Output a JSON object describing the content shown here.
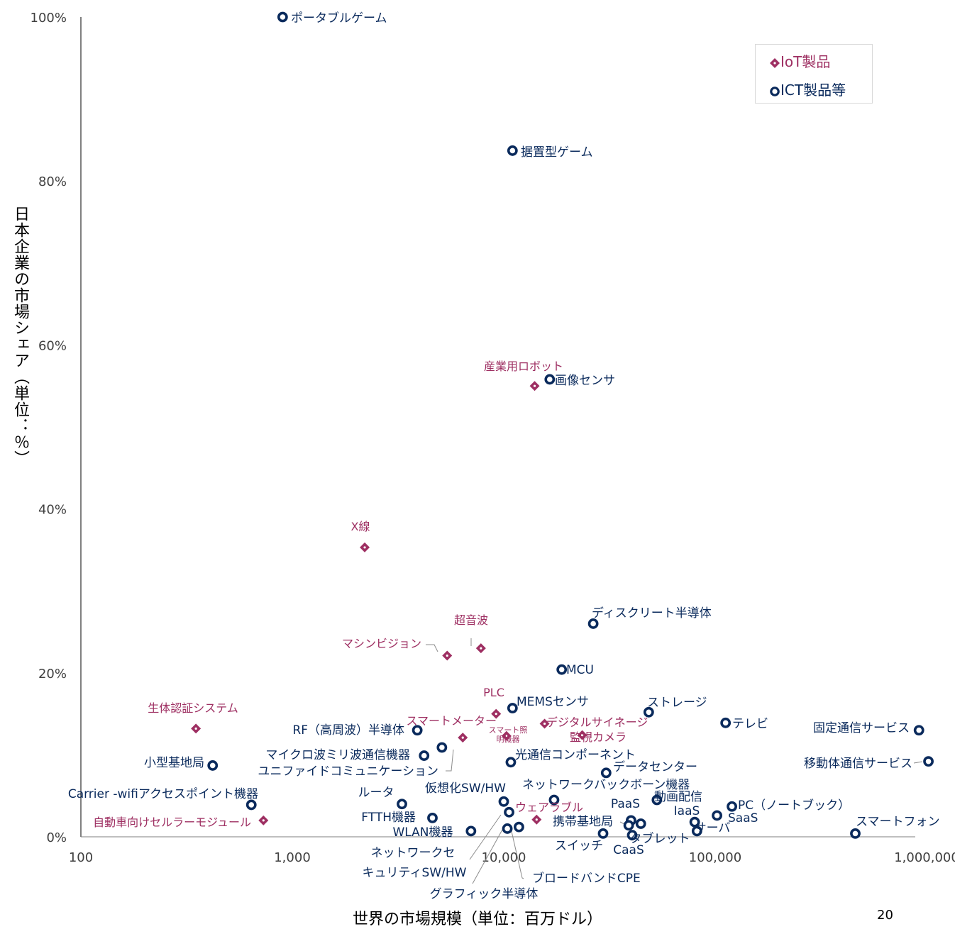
{
  "chart_data": {
    "type": "scatter",
    "xlabel": "世界の市場規模（単位：百万ドル）",
    "ylabel": "日本企業の市場シェア（単位：％）",
    "xscale": "log",
    "xlim": [
      100,
      1000000
    ],
    "ylim": [
      0,
      100
    ],
    "x_ticks": [
      "100",
      "1,000",
      "10,000",
      "100,000",
      "1,000,000"
    ],
    "y_ticks": [
      "0%",
      "20%",
      "40%",
      "60%",
      "80%",
      "100%"
    ],
    "legend_position": "top-right",
    "series": [
      {
        "name": "IoT製品",
        "marker": "diamond",
        "color": "#9e2f62",
        "points": [
          {
            "label": "産業用ロボット",
            "x": 14000,
            "y": 55.0
          },
          {
            "label": "X線",
            "x": 2200,
            "y": 35.3
          },
          {
            "label": "超音波",
            "x": 7800,
            "y": 23.0
          },
          {
            "label": "マシンビジョン",
            "x": 5400,
            "y": 22.1
          },
          {
            "label": "PLC",
            "x": 9200,
            "y": 15.0
          },
          {
            "label": "生体認証システム",
            "x": 350,
            "y": 13.2
          },
          {
            "label": "スマートメーター",
            "x": 6400,
            "y": 12.1
          },
          {
            "label": "スマート照明機器",
            "x": 10300,
            "y": 12.3
          },
          {
            "label": "デジタルサイネージ",
            "x": 15600,
            "y": 13.8
          },
          {
            "label": "監視カメラ",
            "x": 23500,
            "y": 12.4
          },
          {
            "label": "ウェアラブル",
            "x": 14300,
            "y": 2.1
          },
          {
            "label": "自動車向けセルラーモジュール",
            "x": 730,
            "y": 2.0
          }
        ]
      },
      {
        "name": "ICT製品等",
        "marker": "circle",
        "color": "#0a2a5c",
        "points": [
          {
            "label": "ポータブルゲーム",
            "x": 900,
            "y": 100.0
          },
          {
            "label": "据置型ゲーム",
            "x": 11000,
            "y": 83.7
          },
          {
            "label": "画像センサ",
            "x": 16500,
            "y": 55.8
          },
          {
            "label": "ディスクリート半導体",
            "x": 26500,
            "y": 26.0
          },
          {
            "label": "MCU",
            "x": 18800,
            "y": 20.4
          },
          {
            "label": "MEMSセンサ",
            "x": 11000,
            "y": 15.7
          },
          {
            "label": "ストレージ",
            "x": 48500,
            "y": 15.2
          },
          {
            "label": "テレビ",
            "x": 112000,
            "y": 13.9
          },
          {
            "label": "固定通信サービス",
            "x": 920000,
            "y": 13.0
          },
          {
            "label": "RF（高周波）半導体",
            "x": 3900,
            "y": 13.0
          },
          {
            "label": "ユニファイドコミュニケーション",
            "x": 5100,
            "y": 10.9
          },
          {
            "label": "マイクロ波ミリ波通信機器",
            "x": 4200,
            "y": 9.9
          },
          {
            "label": "小型基地局",
            "x": 420,
            "y": 8.7
          },
          {
            "label": "光通信コンポーネント",
            "x": 10800,
            "y": 9.1
          },
          {
            "label": "移動体通信サービス",
            "x": 1020000,
            "y": 9.2
          },
          {
            "label": "データセンター",
            "x": 30500,
            "y": 7.8
          },
          {
            "label": "ネットワークバックボーン機器",
            "x": 17300,
            "y": 4.5
          },
          {
            "label": "動画配信",
            "x": 53000,
            "y": 4.5
          },
          {
            "label": "Carrier -wifiアクセスポイント機器",
            "x": 640,
            "y": 3.9
          },
          {
            "label": "ルータ",
            "x": 3300,
            "y": 4.0
          },
          {
            "label": "仮想化SW/HW",
            "x": 10000,
            "y": 4.3
          },
          {
            "label": "PC（ノートブック）",
            "x": 120000,
            "y": 3.7
          },
          {
            "label": "SaaS",
            "x": 102000,
            "y": 2.6
          },
          {
            "label": "PaaS",
            "x": 40000,
            "y": 2.0
          },
          {
            "label": "IaaS",
            "x": 80000,
            "y": 1.8
          },
          {
            "label": "FTTH機器",
            "x": 4600,
            "y": 2.3
          },
          {
            "label": "携帯基地局",
            "x": 39000,
            "y": 1.4
          },
          {
            "label": "ネットワークセキュリティSW/HW",
            "x": 10600,
            "y": 3.0
          },
          {
            "label": "ブロードバンドCPE",
            "x": 11800,
            "y": 1.2
          },
          {
            "label": "グラフィック半導体",
            "x": 10400,
            "y": 1.0
          },
          {
            "label": "WLAN機器",
            "x": 7000,
            "y": 0.7
          },
          {
            "label": "スイッチ",
            "x": 29500,
            "y": 0.4
          },
          {
            "label": "CaaS",
            "x": 40500,
            "y": 0.2
          },
          {
            "label": "タブレット",
            "x": 44500,
            "y": 1.6
          },
          {
            "label": "サーバ",
            "x": 82000,
            "y": 0.7
          },
          {
            "label": "スマートフォン",
            "x": 460000,
            "y": 0.4
          }
        ]
      }
    ]
  },
  "page_number": "20"
}
